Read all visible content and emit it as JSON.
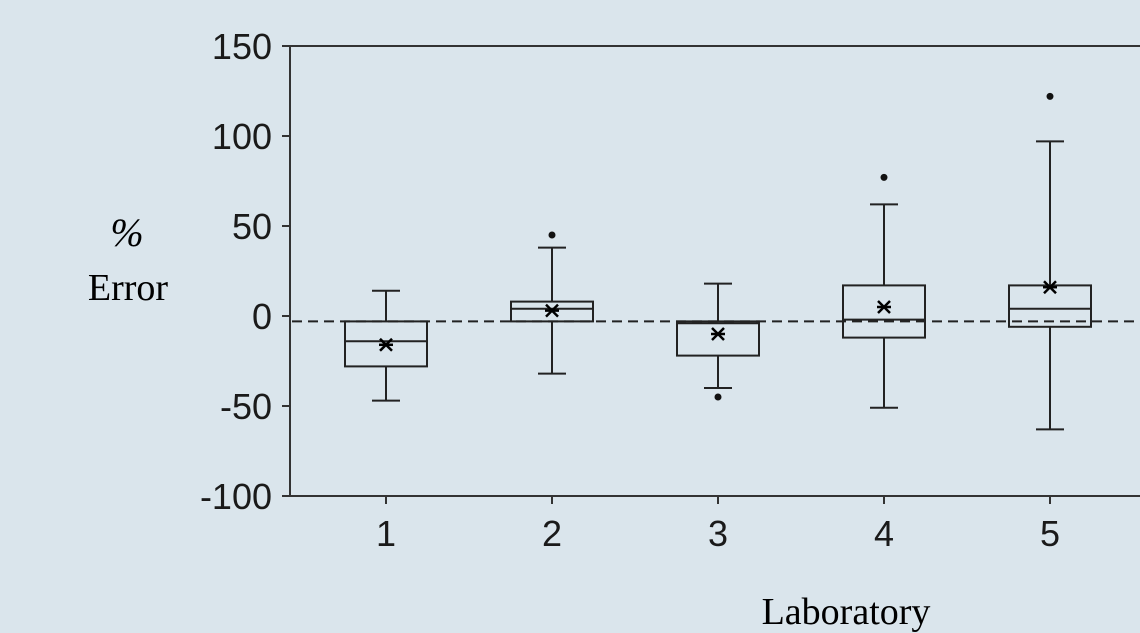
{
  "chart_data": {
    "type": "box",
    "categories": [
      "1",
      "2",
      "3",
      "4",
      "5"
    ],
    "xlabel": "Laboratory",
    "ylabel": [
      "%",
      "Error"
    ],
    "ylim": [
      -100,
      150
    ],
    "yticks": [
      150,
      100,
      50,
      0,
      -50,
      -100
    ],
    "reference_line": {
      "y": -3,
      "style": "dashed"
    },
    "grid": false,
    "boxes": [
      {
        "category": "1",
        "whisker_low": -47,
        "q1": -28,
        "median": -14,
        "q3": -3,
        "whisker_high": 14,
        "mean": -16,
        "outliers": []
      },
      {
        "category": "2",
        "whisker_low": -32,
        "q1": -3,
        "median": 4,
        "q3": 8,
        "whisker_high": 38,
        "mean": 3,
        "outliers": [
          45
        ]
      },
      {
        "category": "3",
        "whisker_low": -40,
        "q1": -22,
        "median": -4,
        "q3": -3,
        "whisker_high": 18,
        "mean": -10,
        "outliers": [
          -45
        ]
      },
      {
        "category": "4",
        "whisker_low": -51,
        "q1": -12,
        "median": -2,
        "q3": 17,
        "whisker_high": 62,
        "mean": 5,
        "outliers": [
          77
        ]
      },
      {
        "category": "5",
        "whisker_low": -63,
        "q1": -6,
        "median": 4,
        "q3": 17,
        "whisker_high": 97,
        "mean": 16,
        "outliers": [
          122
        ]
      }
    ]
  }
}
